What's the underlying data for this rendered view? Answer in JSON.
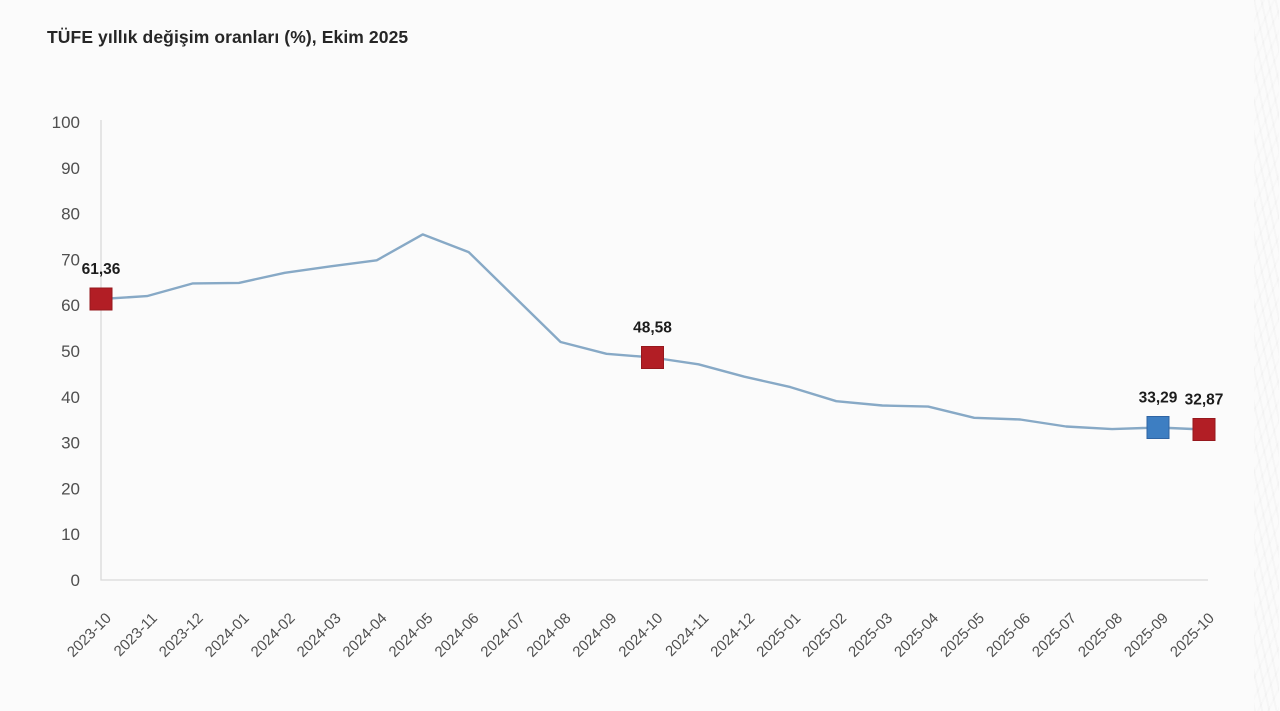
{
  "title": "TÜFE yıllık değişim oranları (%), Ekim 2025",
  "colors": {
    "background": "#fbfbfb",
    "line": "#87a9c6",
    "axis": "#d9d9d9",
    "tick_text": "#4f4f4f",
    "annotation_text": "#1c1c1c",
    "marker_red": "#b21e25",
    "marker_red_stroke": "#96181d",
    "marker_blue": "#3d7ec2",
    "marker_blue_stroke": "#2f64a3",
    "title_text": "#262626"
  },
  "chart_data": {
    "type": "line",
    "title": "TÜFE yıllık değişim oranları (%), Ekim 2025",
    "xlabel": "",
    "ylabel": "",
    "ylim": [
      0,
      100
    ],
    "ytick_step": 10,
    "grid": false,
    "legend_position": "none",
    "ytick_labels": [
      "0",
      "10",
      "20",
      "30",
      "40",
      "50",
      "60",
      "70",
      "80",
      "90",
      "100"
    ],
    "x": [
      "2023-10",
      "2023-11",
      "2023-12",
      "2024-01",
      "2024-02",
      "2024-03",
      "2024-04",
      "2024-05",
      "2024-06",
      "2024-07",
      "2024-08",
      "2024-09",
      "2024-10",
      "2024-11",
      "2024-12",
      "2025-01",
      "2025-02",
      "2025-03",
      "2025-04",
      "2025-05",
      "2025-06",
      "2025-07",
      "2025-08",
      "2025-09",
      "2025-10"
    ],
    "series": [
      {
        "name": "TÜFE yıllık değişim oranı (%)",
        "values": [
          61.36,
          61.98,
          64.77,
          64.86,
          67.07,
          68.5,
          69.8,
          75.45,
          71.6,
          61.78,
          51.97,
          49.38,
          48.58,
          47.09,
          44.38,
          42.12,
          39.05,
          38.1,
          37.86,
          35.41,
          35.05,
          33.52,
          32.95,
          33.29,
          32.87
        ]
      }
    ],
    "annotations": [
      {
        "x": "2023-10",
        "value": 61.36,
        "label": "61,36",
        "marker": "square",
        "marker_color": "#b21e25",
        "marker_stroke": "#96181d"
      },
      {
        "x": "2024-10",
        "value": 48.58,
        "label": "48,58",
        "marker": "square",
        "marker_color": "#b21e25",
        "marker_stroke": "#96181d"
      },
      {
        "x": "2025-09",
        "value": 33.29,
        "label": "33,29",
        "marker": "square",
        "marker_color": "#3d7ec2",
        "marker_stroke": "#2f64a3"
      },
      {
        "x": "2025-10",
        "value": 32.87,
        "label": "32,87",
        "marker": "square",
        "marker_color": "#b21e25",
        "marker_stroke": "#96181d"
      }
    ]
  }
}
